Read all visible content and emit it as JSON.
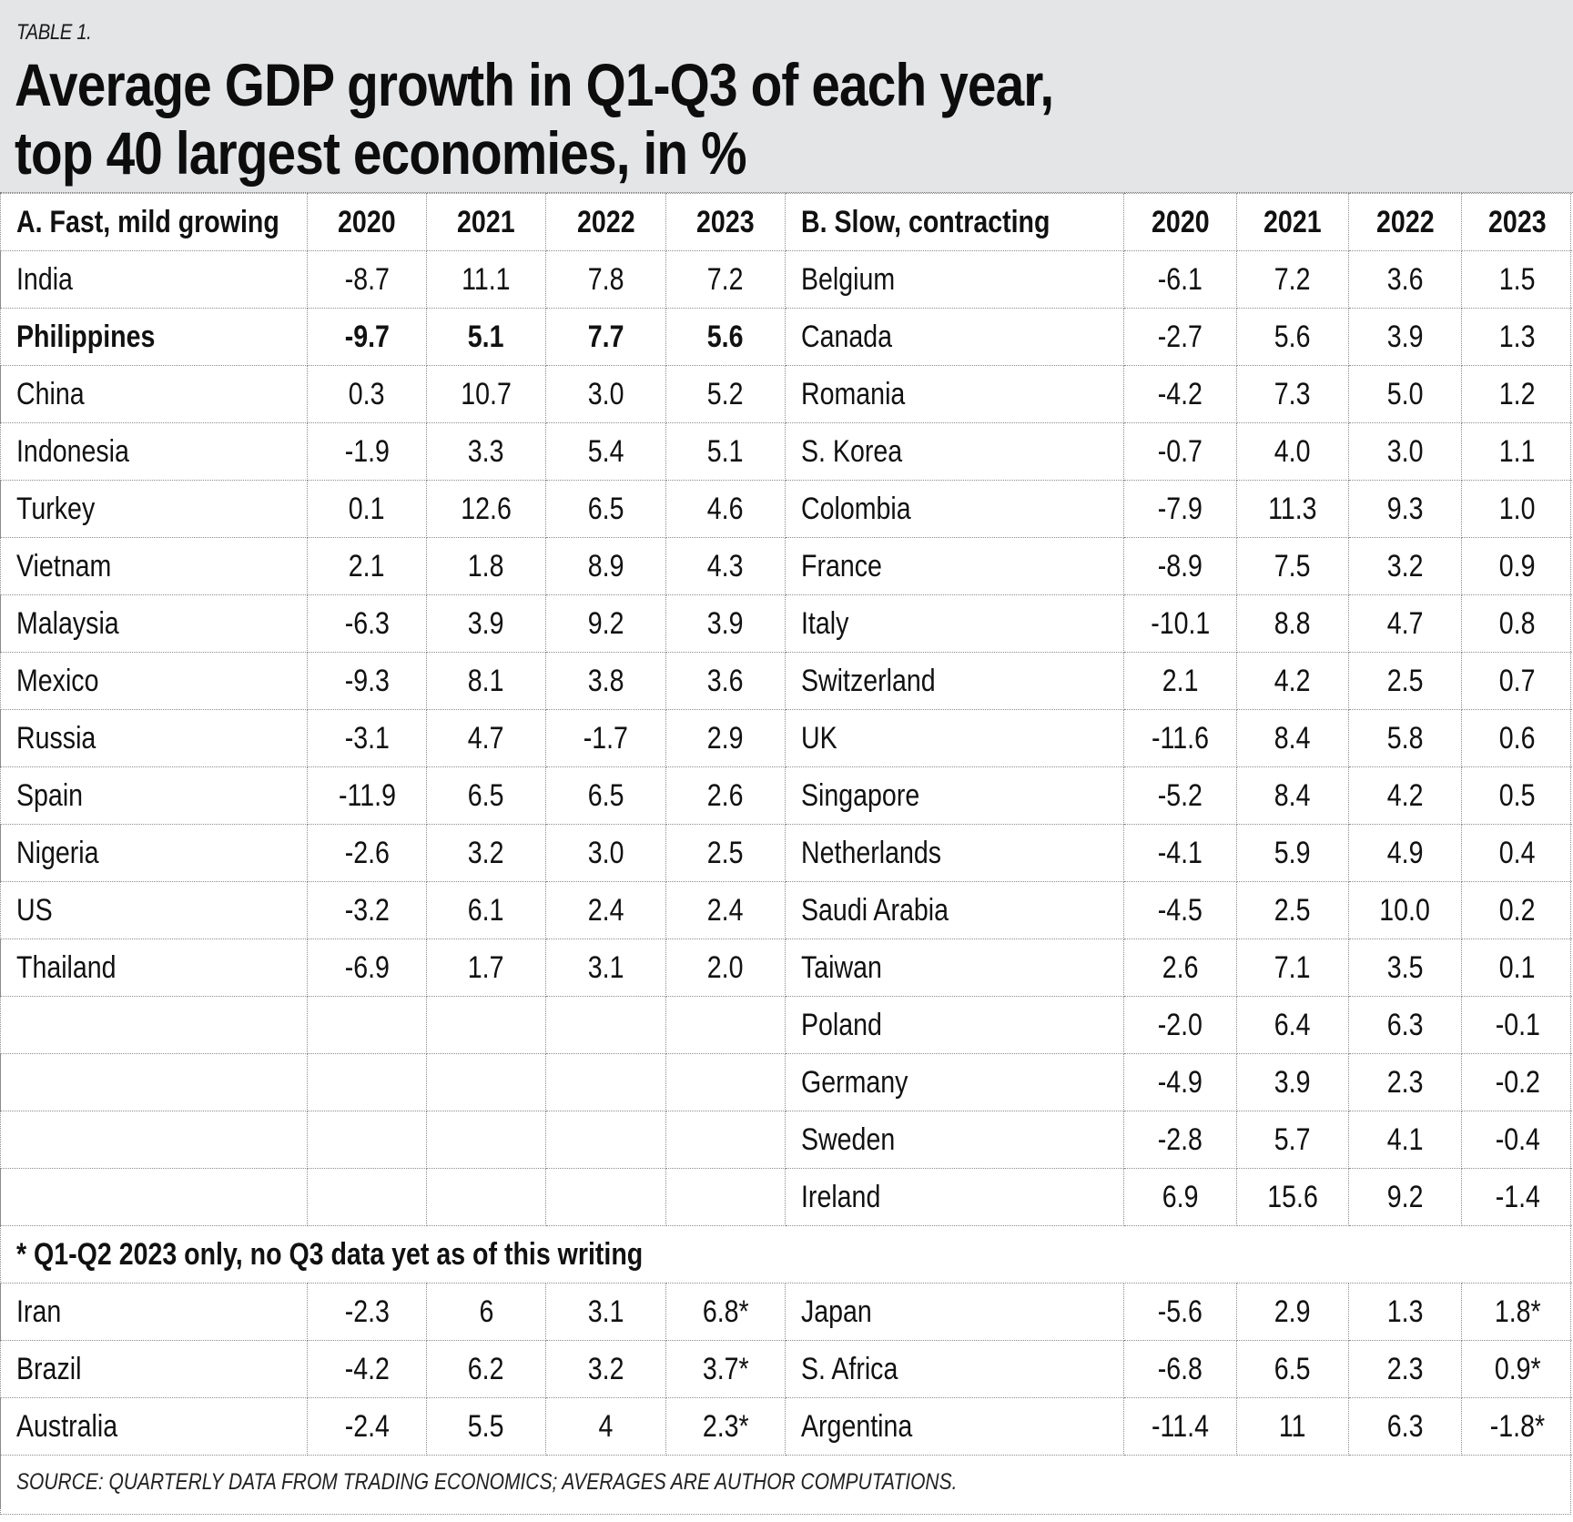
{
  "kicker": "TABLE 1.",
  "title_line1": "Average GDP growth in Q1-Q3 of each year,",
  "title_line2": "top 40 largest economies, in %",
  "section_a": {
    "label": "A. Fast, mild growing",
    "years": [
      "2020",
      "2021",
      "2022",
      "2023"
    ],
    "rows": [
      {
        "country": "India",
        "values": [
          "-8.7",
          "11.1",
          "7.8",
          "7.2"
        ]
      },
      {
        "country": "Philippines",
        "values": [
          "-9.7",
          "5.1",
          "7.7",
          "5.6"
        ],
        "highlight": true
      },
      {
        "country": "China",
        "values": [
          "0.3",
          "10.7",
          "3.0",
          "5.2"
        ]
      },
      {
        "country": "Indonesia",
        "values": [
          "-1.9",
          "3.3",
          "5.4",
          "5.1"
        ]
      },
      {
        "country": "Turkey",
        "values": [
          "0.1",
          "12.6",
          "6.5",
          "4.6"
        ]
      },
      {
        "country": "Vietnam",
        "values": [
          "2.1",
          "1.8",
          "8.9",
          "4.3"
        ]
      },
      {
        "country": "Malaysia",
        "values": [
          "-6.3",
          "3.9",
          "9.2",
          "3.9"
        ]
      },
      {
        "country": "Mexico",
        "values": [
          "-9.3",
          "8.1",
          "3.8",
          "3.6"
        ]
      },
      {
        "country": "Russia",
        "values": [
          "-3.1",
          "4.7",
          "-1.7",
          "2.9"
        ]
      },
      {
        "country": "Spain",
        "values": [
          "-11.9",
          "6.5",
          "6.5",
          "2.6"
        ]
      },
      {
        "country": "Nigeria",
        "values": [
          "-2.6",
          "3.2",
          "3.0",
          "2.5"
        ]
      },
      {
        "country": "US",
        "values": [
          "-3.2",
          "6.1",
          "2.4",
          "2.4"
        ]
      },
      {
        "country": "Thailand",
        "values": [
          "-6.9",
          "1.7",
          "3.1",
          "2.0"
        ]
      }
    ]
  },
  "section_b": {
    "label": "B. Slow, contracting",
    "years": [
      "2020",
      "2021",
      "2022",
      "2023"
    ],
    "rows": [
      {
        "country": "Belgium",
        "values": [
          "-6.1",
          "7.2",
          "3.6",
          "1.5"
        ]
      },
      {
        "country": "Canada",
        "values": [
          "-2.7",
          "5.6",
          "3.9",
          "1.3"
        ]
      },
      {
        "country": "Romania",
        "values": [
          "-4.2",
          "7.3",
          "5.0",
          "1.2"
        ]
      },
      {
        "country": "S. Korea",
        "values": [
          "-0.7",
          "4.0",
          "3.0",
          "1.1"
        ]
      },
      {
        "country": "Colombia",
        "values": [
          "-7.9",
          "11.3",
          "9.3",
          "1.0"
        ]
      },
      {
        "country": "France",
        "values": [
          "-8.9",
          "7.5",
          "3.2",
          "0.9"
        ]
      },
      {
        "country": "Italy",
        "values": [
          "-10.1",
          "8.8",
          "4.7",
          "0.8"
        ]
      },
      {
        "country": "Switzerland",
        "values": [
          "2.1",
          "4.2",
          "2.5",
          "0.7"
        ]
      },
      {
        "country": "UK",
        "values": [
          "-11.6",
          "8.4",
          "5.8",
          "0.6"
        ]
      },
      {
        "country": "Singapore",
        "values": [
          "-5.2",
          "8.4",
          "4.2",
          "0.5"
        ]
      },
      {
        "country": "Netherlands",
        "values": [
          "-4.1",
          "5.9",
          "4.9",
          "0.4"
        ]
      },
      {
        "country": "Saudi Arabia",
        "values": [
          "-4.5",
          "2.5",
          "10.0",
          "0.2"
        ]
      },
      {
        "country": "Taiwan",
        "values": [
          "2.6",
          "7.1",
          "3.5",
          "0.1"
        ]
      },
      {
        "country": "Poland",
        "values": [
          "-2.0",
          "6.4",
          "6.3",
          "-0.1"
        ]
      },
      {
        "country": "Germany",
        "values": [
          "-4.9",
          "3.9",
          "2.3",
          "-0.2"
        ]
      },
      {
        "country": "Sweden",
        "values": [
          "-2.8",
          "5.7",
          "4.1",
          "-0.4"
        ]
      },
      {
        "country": "Ireland",
        "values": [
          "6.9",
          "15.6",
          "9.2",
          "-1.4"
        ]
      }
    ]
  },
  "footnote": "* Q1-Q2 2023 only, no Q3 data yet as of this writing",
  "partial_a": [
    {
      "country": "Iran",
      "values": [
        "-2.3",
        "6",
        "3.1",
        "6.8*"
      ]
    },
    {
      "country": "Brazil",
      "values": [
        "-4.2",
        "6.2",
        "3.2",
        "3.7*"
      ]
    },
    {
      "country": "Australia",
      "values": [
        "-2.4",
        "5.5",
        "4",
        "2.3*"
      ]
    }
  ],
  "partial_b": [
    {
      "country": "Japan",
      "values": [
        "-5.6",
        "2.9",
        "1.3",
        "1.8*"
      ]
    },
    {
      "country": "S. Africa",
      "values": [
        "-6.8",
        "6.5",
        "2.3",
        "0.9*"
      ]
    },
    {
      "country": "Argentina",
      "values": [
        "-11.4",
        "11",
        "6.3",
        "-1.8*"
      ]
    }
  ],
  "source": "SOURCE: QUARTERLY DATA FROM TRADING ECONOMICS; AVERAGES ARE AUTHOR COMPUTATIONS."
}
